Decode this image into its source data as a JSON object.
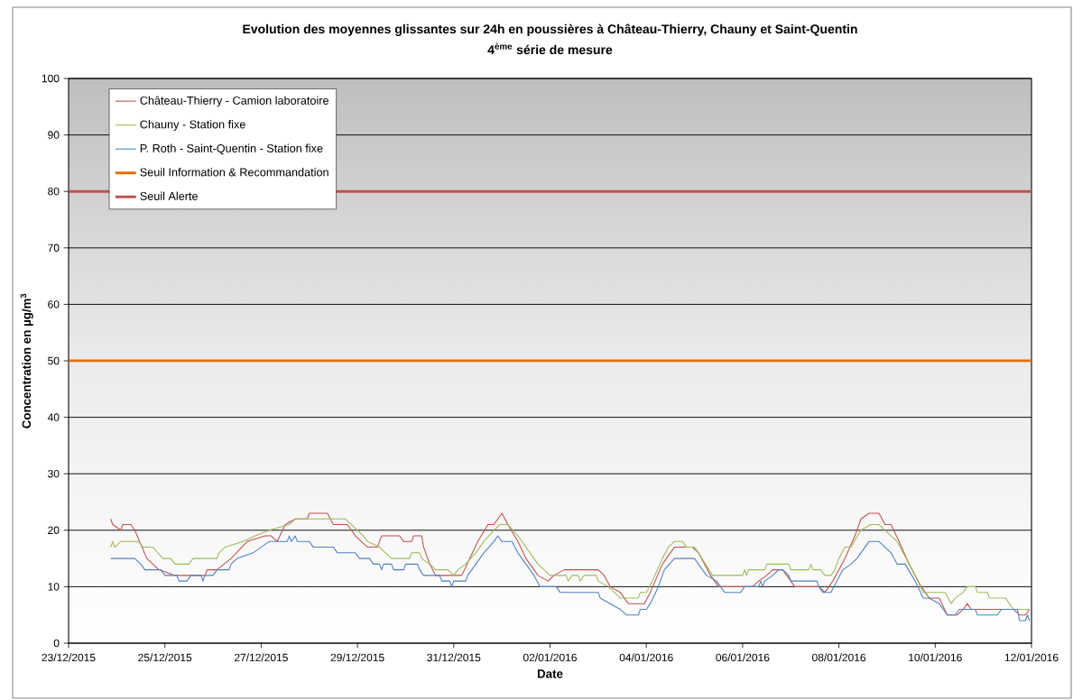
{
  "chart_data": {
    "type": "line",
    "title": "Evolution des moyennes glissantes sur 24h en poussières à Château-Thierry, Chauny et Saint-Quentin",
    "subtitle": "4$^{ème}$ série de mesure",
    "xlabel": "Date",
    "ylabel": "Concentration en µg/m$^{3}$",
    "xlim": [
      "2015-12-23",
      "2016-01-12"
    ],
    "xticks": [
      {
        "value": "2015-12-23",
        "label": "23/12/2015"
      },
      {
        "value": "2015-12-25",
        "label": "25/12/2015"
      },
      {
        "value": "2015-12-27",
        "label": "27/12/2015"
      },
      {
        "value": "2015-12-29",
        "label": "29/12/2015"
      },
      {
        "value": "2015-12-31",
        "label": "31/12/2015"
      },
      {
        "value": "2016-01-02",
        "label": "02/01/2016"
      },
      {
        "value": "2016-01-04",
        "label": "04/01/2016"
      },
      {
        "value": "2016-01-06",
        "label": "06/01/2016"
      },
      {
        "value": "2016-01-08",
        "label": "08/01/2016"
      },
      {
        "value": "2016-01-10",
        "label": "10/01/2016"
      },
      {
        "value": "2016-01-12",
        "label": "12/01/2016"
      }
    ],
    "ylim": [
      0,
      100
    ],
    "yticks": [
      0,
      10,
      20,
      30,
      40,
      50,
      60,
      70,
      80,
      90,
      100
    ],
    "grid": "y",
    "legend": "top left",
    "series": [
      {
        "name": "Château-Thierry - Camion laboratoire",
        "color": "#c0504d",
        "x": [
          "2015-12-23T21:00",
          "2015-12-23T22:00",
          "2015-12-24T02:00",
          "2015-12-24T03:00",
          "2015-12-24T07:00",
          "2015-12-24T09:00",
          "2015-12-24T15:00",
          "2015-12-24T21:00",
          "2015-12-25T05:00",
          "2015-12-25T20:00",
          "2015-12-25T21:00",
          "2015-12-26T02:00",
          "2015-12-26T09:00",
          "2015-12-26T17:00",
          "2015-12-27T02:00",
          "2015-12-27T05:00",
          "2015-12-27T08:00",
          "2015-12-27T12:00",
          "2015-12-27T17:00",
          "2015-12-27T23:00",
          "2015-12-28T00:00",
          "2015-12-28T09:00",
          "2015-12-28T12:00",
          "2015-12-28T19:00",
          "2015-12-28T23:00",
          "2015-12-29T05:00",
          "2015-12-29T10:00",
          "2015-12-29T12:00",
          "2015-12-29T21:00",
          "2015-12-29T23:00",
          "2015-12-30T03:00",
          "2015-12-30T04:00",
          "2015-12-30T08:00",
          "2015-12-30T09:00",
          "2015-12-30T12:00",
          "2015-12-30T15:00",
          "2015-12-31T04:00",
          "2015-12-31T08:00",
          "2015-12-31T12:00",
          "2015-12-31T17:00",
          "2015-12-31T20:00",
          "2016-01-01T00:00",
          "2016-01-01T03:00",
          "2016-01-01T08:00",
          "2016-01-01T12:00",
          "2016-01-01T18:00",
          "2016-01-01T23:00",
          "2016-01-02T02:00",
          "2016-01-02T07:00",
          "2016-01-03T00:00",
          "2016-01-03T03:00",
          "2016-01-03T06:00",
          "2016-01-03T11:00",
          "2016-01-03T15:00",
          "2016-01-03T23:00",
          "2016-01-04T02:00",
          "2016-01-04T08:00",
          "2016-01-04T14:00",
          "2016-01-04T23:00",
          "2016-01-05T02:00",
          "2016-01-05T08:00",
          "2016-01-05T12:00",
          "2016-01-06T05:00",
          "2016-01-06T08:00",
          "2016-01-06T12:00",
          "2016-01-06T15:00",
          "2016-01-06T20:00",
          "2016-01-07T00:00",
          "2016-01-07T02:00",
          "2016-01-07T14:00",
          "2016-01-07T17:00",
          "2016-01-07T21:00",
          "2016-01-08T03:00",
          "2016-01-08T08:00",
          "2016-01-08T11:00",
          "2016-01-08T15:00",
          "2016-01-08T20:00",
          "2016-01-08T23:00",
          "2016-01-09T02:00",
          "2016-01-09T06:00",
          "2016-01-09T11:00",
          "2016-01-09T17:00",
          "2016-01-09T21:00",
          "2016-01-10T02:00",
          "2016-01-10T06:00",
          "2016-01-10T11:00",
          "2016-01-10T14:00",
          "2016-01-10T16:00",
          "2016-01-10T18:00",
          "2016-01-11T15:00",
          "2016-01-11T18:00",
          "2016-01-11T21:00",
          "2016-01-11T23:00"
        ],
        "values": [
          22,
          21,
          20,
          21,
          21,
          20,
          15,
          13,
          12,
          12,
          13,
          13,
          15,
          18,
          19,
          19,
          18,
          21,
          22,
          22,
          23,
          23,
          21,
          21,
          19,
          17,
          17,
          19,
          19,
          18,
          18,
          19,
          19,
          17,
          14,
          12,
          12,
          15,
          18,
          21,
          21,
          23,
          21,
          18,
          15,
          12,
          11,
          12,
          13,
          13,
          12,
          10,
          9,
          7,
          7,
          9,
          14,
          17,
          17,
          16,
          12,
          10,
          10,
          11,
          12,
          13,
          13,
          11,
          10,
          10,
          9,
          11,
          15,
          19,
          22,
          23,
          23,
          21,
          21,
          18,
          14,
          10,
          8,
          8,
          5,
          5,
          6,
          7,
          6,
          6,
          5,
          5,
          6
        ]
      },
      {
        "name": "Chauny - Station fixe",
        "color": "#9bbb59",
        "x": [
          "2015-12-23T21:00",
          "2015-12-23T22:00",
          "2015-12-23T23:00",
          "2015-12-24T02:00",
          "2015-12-24T11:00",
          "2015-12-24T13:00",
          "2015-12-24T18:00",
          "2015-12-24T23:00",
          "2015-12-25T03:00",
          "2015-12-25T05:00",
          "2015-12-25T12:00",
          "2015-12-25T14:00",
          "2015-12-26T02:00",
          "2015-12-26T03:00",
          "2015-12-26T06:00",
          "2015-12-26T15:00",
          "2015-12-26T21:00",
          "2015-12-27T04:00",
          "2015-12-27T14:00",
          "2015-12-27T17:00",
          "2015-12-28T18:00",
          "2015-12-28T21:00",
          "2015-12-29T00:00",
          "2015-12-29T03:00",
          "2015-12-29T05:00",
          "2015-12-29T11:00",
          "2015-12-29T17:00",
          "2015-12-30T02:00",
          "2015-12-30T03:00",
          "2015-12-30T07:00",
          "2015-12-30T08:00",
          "2015-12-30T12:00",
          "2015-12-30T15:00",
          "2015-12-30T21:00",
          "2015-12-31T00:00",
          "2015-12-31T02:00",
          "2015-12-31T06:00",
          "2015-12-31T11:00",
          "2015-12-31T15:00",
          "2015-12-31T20:00",
          "2015-12-31T23:00",
          "2016-01-01T03:00",
          "2016-01-01T08:00",
          "2016-01-01T12:00",
          "2016-01-01T18:00",
          "2016-01-02T00:00",
          "2016-01-02T08:00",
          "2016-01-02T09:00",
          "2016-01-02T11:00",
          "2016-01-02T14:00",
          "2016-01-02T15:00",
          "2016-01-02T17:00",
          "2016-01-02T23:00",
          "2016-01-03T00:00",
          "2016-01-03T05:00",
          "2016-01-03T08:00",
          "2016-01-03T11:00",
          "2016-01-03T20:00",
          "2016-01-03T21:00",
          "2016-01-04T00:00",
          "2016-01-04T03:00",
          "2016-01-04T08:00",
          "2016-01-04T11:00",
          "2016-01-04T14:00",
          "2016-01-04T18:00",
          "2016-01-04T20:00",
          "2016-01-05T00:00",
          "2016-01-05T02:00",
          "2016-01-05T09:00",
          "2016-01-06T00:00",
          "2016-01-06T01:00",
          "2016-01-06T02:00",
          "2016-01-06T03:00",
          "2016-01-06T11:00",
          "2016-01-06T12:00",
          "2016-01-06T23:00",
          "2016-01-07T00:00",
          "2016-01-07T09:00",
          "2016-01-07T10:00",
          "2016-01-07T11:00",
          "2016-01-07T15:00",
          "2016-01-07T17:00",
          "2016-01-07T20:00",
          "2016-01-07T22:00",
          "2016-01-08T00:00",
          "2016-01-08T03:00",
          "2016-01-08T06:00",
          "2016-01-08T11:00",
          "2016-01-08T16:00",
          "2016-01-08T20:00",
          "2016-01-08T23:00",
          "2016-01-09T05:00",
          "2016-01-09T08:00",
          "2016-01-09T14:00",
          "2016-01-09T18:00",
          "2016-01-10T05:00",
          "2016-01-10T08:00",
          "2016-01-10T10:00",
          "2016-01-10T14:00",
          "2016-01-10T16:00",
          "2016-01-10T20:00",
          "2016-01-10T21:00",
          "2016-01-11T02:00",
          "2016-01-11T03:00",
          "2016-01-11T11:00",
          "2016-01-11T15:00",
          "2016-01-11T23:00"
        ],
        "values": [
          17,
          18,
          17,
          18,
          18,
          17,
          17,
          15,
          15,
          14,
          14,
          15,
          15,
          16,
          17,
          18,
          19,
          20,
          21,
          22,
          22,
          21,
          20,
          19,
          18,
          17,
          15,
          15,
          16,
          16,
          15,
          14,
          13,
          13,
          12,
          13,
          14,
          16,
          18,
          20,
          21,
          21,
          19,
          17,
          14,
          12,
          12,
          11,
          12,
          12,
          11,
          12,
          12,
          11,
          10,
          9,
          8,
          8,
          9,
          9,
          11,
          15,
          17,
          18,
          18,
          17,
          17,
          16,
          12,
          12,
          13,
          12,
          13,
          13,
          14,
          14,
          13,
          13,
          14,
          13,
          13,
          12,
          12,
          13,
          15,
          17,
          17,
          20,
          21,
          21,
          20,
          18,
          16,
          12,
          9,
          9,
          7,
          8,
          9,
          10,
          10,
          9,
          9,
          8,
          8,
          6,
          6
        ]
      },
      {
        "name": "P. Roth - Saint-Quentin - Station fixe",
        "color": "#4f81bd",
        "x": [
          "2015-12-23T21:00",
          "2015-12-24T09:00",
          "2015-12-24T12:00",
          "2015-12-24T14:00",
          "2015-12-24T22:00",
          "2015-12-25T00:00",
          "2015-12-25T06:00",
          "2015-12-25T07:00",
          "2015-12-25T11:00",
          "2015-12-25T13:00",
          "2015-12-25T18:00",
          "2015-12-25T19:00",
          "2015-12-25T20:00",
          "2015-12-26T00:00",
          "2015-12-26T02:00",
          "2015-12-26T08:00",
          "2015-12-26T09:00",
          "2015-12-26T12:00",
          "2015-12-26T20:00",
          "2015-12-27T00:00",
          "2015-12-27T04:00",
          "2015-12-27T13:00",
          "2015-12-27T14:00",
          "2015-12-27T15:00",
          "2015-12-27T17:00",
          "2015-12-27T18:00",
          "2015-12-28T00:00",
          "2015-12-28T02:00",
          "2015-12-28T12:00",
          "2015-12-28T14:00",
          "2015-12-28T23:00",
          "2015-12-29T01:00",
          "2015-12-29T06:00",
          "2015-12-29T08:00",
          "2015-12-29T11:00",
          "2015-12-29T12:00",
          "2015-12-29T13:00",
          "2015-12-29T17:00",
          "2015-12-29T18:00",
          "2015-12-29T23:00",
          "2015-12-30T00:00",
          "2015-12-30T06:00",
          "2015-12-30T07:00",
          "2015-12-30T09:00",
          "2015-12-30T17:00",
          "2015-12-30T18:00",
          "2015-12-30T22:00",
          "2015-12-30T23:00",
          "2015-12-31T00:00",
          "2015-12-31T06:00",
          "2015-12-31T07:00",
          "2015-12-31T11:00",
          "2015-12-31T15:00",
          "2015-12-31T20:00",
          "2015-12-31T22:00",
          "2016-01-01T00:00",
          "2016-01-01T05:00",
          "2016-01-01T08:00",
          "2016-01-01T12:00",
          "2016-01-01T16:00",
          "2016-01-01T19:00",
          "2016-01-02T03:00",
          "2016-01-02T05:00",
          "2016-01-03T00:00",
          "2016-01-03T01:00",
          "2016-01-03T06:00",
          "2016-01-03T11:00",
          "2016-01-03T14:00",
          "2016-01-03T20:00",
          "2016-01-03T21:00",
          "2016-01-04T00:00",
          "2016-01-04T02:00",
          "2016-01-04T06:00",
          "2016-01-04T09:00",
          "2016-01-04T14:00",
          "2016-01-05T00:00",
          "2016-01-05T02:00",
          "2016-01-05T06:00",
          "2016-01-05T11:00",
          "2016-01-05T15:00",
          "2016-01-05T23:00",
          "2016-01-06T01:00",
          "2016-01-06T08:00",
          "2016-01-06T09:00",
          "2016-01-06T10:00",
          "2016-01-06T11:00",
          "2016-01-06T15:00",
          "2016-01-06T18:00",
          "2016-01-06T20:00",
          "2016-01-06T23:00",
          "2016-01-07T00:00",
          "2016-01-07T13:00",
          "2016-01-07T14:00",
          "2016-01-07T16:00",
          "2016-01-07T20:00",
          "2016-01-07T23:00",
          "2016-01-08T02:00",
          "2016-01-08T06:00",
          "2016-01-08T09:00",
          "2016-01-08T13:00",
          "2016-01-08T15:00",
          "2016-01-08T20:00",
          "2016-01-08T23:00",
          "2016-01-09T02:00",
          "2016-01-09T05:00",
          "2016-01-09T09:00",
          "2016-01-09T14:00",
          "2016-01-09T18:00",
          "2016-01-09T21:00",
          "2016-01-10T02:00",
          "2016-01-10T06:00",
          "2016-01-10T10:00",
          "2016-01-10T12:00",
          "2016-01-10T20:00",
          "2016-01-10T21:00",
          "2016-01-11T07:00",
          "2016-01-11T09:00",
          "2016-01-11T17:00",
          "2016-01-11T18:00",
          "2016-01-11T21:00",
          "2016-01-11T22:00",
          "2016-01-11T23:00"
        ],
        "values": [
          15,
          15,
          14,
          13,
          13,
          12,
          12,
          11,
          11,
          12,
          12,
          11,
          12,
          12,
          13,
          13,
          14,
          15,
          16,
          17,
          18,
          18,
          19,
          18,
          19,
          18,
          18,
          17,
          17,
          16,
          16,
          15,
          15,
          14,
          14,
          13,
          14,
          14,
          13,
          13,
          14,
          14,
          13,
          12,
          12,
          11,
          11,
          10,
          11,
          11,
          12,
          14,
          16,
          18,
          19,
          18,
          18,
          16,
          14,
          12,
          10,
          10,
          9,
          9,
          8,
          7,
          6,
          5,
          5,
          6,
          6,
          7,
          10,
          13,
          15,
          15,
          14,
          12,
          11,
          9,
          9,
          10,
          10,
          11,
          10,
          11,
          12,
          13,
          13,
          12,
          11,
          11,
          10,
          9,
          9,
          11,
          13,
          14,
          15,
          17,
          18,
          18,
          17,
          16,
          14,
          14,
          11,
          8,
          8,
          7,
          5,
          5,
          6,
          6,
          5,
          5,
          6,
          6,
          4,
          4,
          5,
          4
        ]
      }
    ],
    "ref_lines": [
      {
        "axis": "y",
        "value": 50,
        "label": "Seuil Information & Recommandation",
        "color": "#e46c0a"
      },
      {
        "axis": "y",
        "value": 80,
        "label": "Seuil Alerte",
        "color": "#c0504d"
      }
    ]
  }
}
